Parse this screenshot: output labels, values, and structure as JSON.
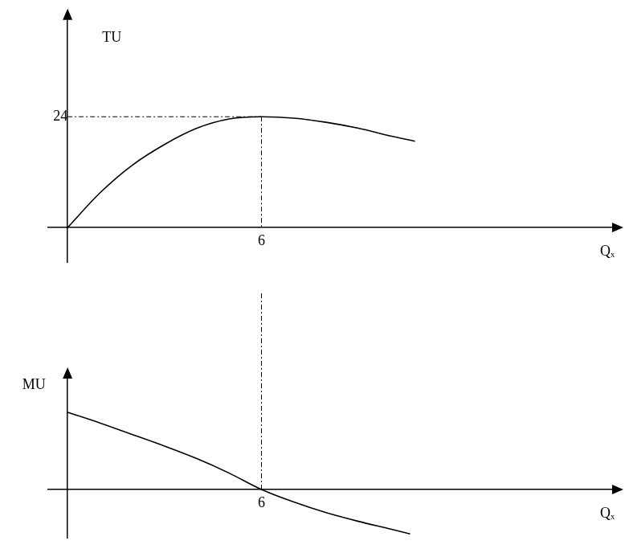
{
  "chart_data": [
    {
      "type": "line",
      "y_label": "TU",
      "x_label": "Qₓ",
      "x": [
        0,
        1,
        2,
        3,
        4,
        5,
        6,
        7,
        8,
        9,
        10,
        10.75
      ],
      "values": [
        0,
        7.5,
        13.5,
        18,
        21.5,
        23.5,
        24,
        23.7,
        22.8,
        21.5,
        19.8,
        18.7
      ],
      "color": "#000000",
      "xlim": [
        -0.6,
        17
      ],
      "ylim": [
        -7.5,
        46
      ],
      "xticks": [
        6
      ],
      "yticks": [
        24
      ],
      "grid": false
    },
    {
      "type": "line",
      "y_label": "MU",
      "x_label": "Qₓ",
      "x": [
        0,
        1,
        2,
        3,
        4,
        5,
        6,
        7,
        8,
        9,
        10,
        10.6
      ],
      "values": [
        8,
        6.9,
        5.7,
        4.5,
        3.2,
        1.7,
        0,
        -1.3,
        -2.4,
        -3.3,
        -4.1,
        -4.6
      ],
      "color": "#000000",
      "xlim": [
        -0.6,
        17
      ],
      "ylim": [
        -5,
        12
      ],
      "xticks": [
        6
      ],
      "grid": false,
      "tick_labels": "x"
    }
  ]
}
